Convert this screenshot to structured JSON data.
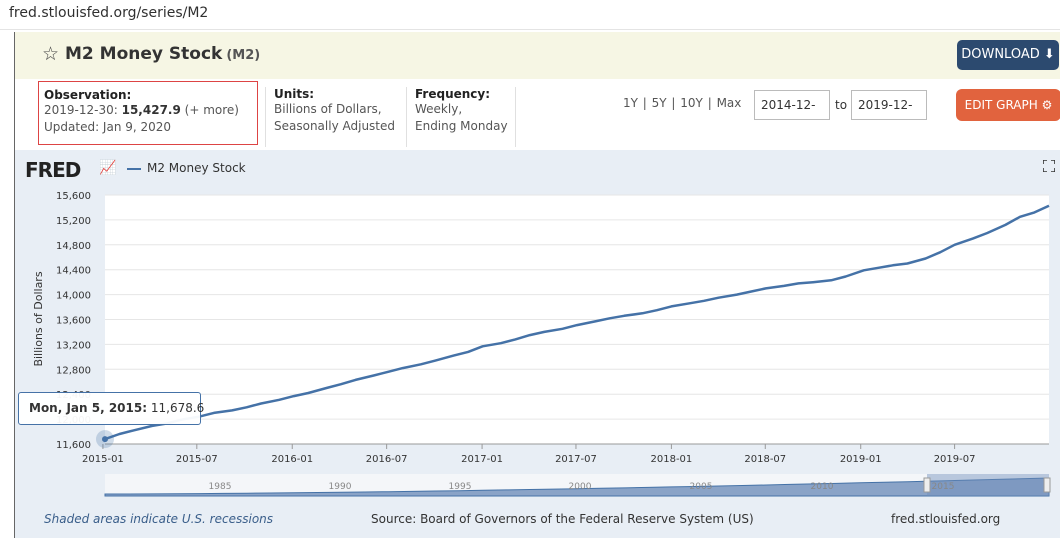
{
  "browser": {
    "url": "fred.stlouisfed.org/series/M2"
  },
  "header": {
    "title": "M2 Money Stock",
    "series_id": "(M2)",
    "download_label": "DOWNLOAD"
  },
  "info": {
    "observation_label": "Observation:",
    "observation_date": "2019-12-30:",
    "observation_value": "15,427.9",
    "observation_more": "(+ more)",
    "updated": "Updated: Jan 9, 2020",
    "units_label": "Units:",
    "units_line1": "Billions of Dollars,",
    "units_line2": "Seasonally Adjusted",
    "frequency_label": "Frequency:",
    "frequency_line1": "Weekly,",
    "frequency_line2": "Ending Monday"
  },
  "controls": {
    "range_links": [
      "1Y",
      "5Y",
      "10Y",
      "Max"
    ],
    "date_from": "2014-12-",
    "date_to": "2019-12-",
    "to_label": "to",
    "edit_label": "EDIT GRAPH"
  },
  "colors": {
    "series": "#4572a7",
    "download_bg": "#2c4a6f",
    "edit_bg": "#e1633e",
    "title_bg": "#f6f6e4"
  },
  "chart_data": {
    "type": "line",
    "legend": "M2 Money Stock",
    "ylabel": "Billions of Dollars",
    "ylim": [
      11600,
      15600
    ],
    "yticks": [
      "15,600",
      "15,200",
      "14,800",
      "14,400",
      "14,000",
      "13,600",
      "13,200",
      "12,800",
      "12,400",
      "12,000",
      "11,600"
    ],
    "xticks": [
      "2015-01",
      "2015-07",
      "2016-01",
      "2016-07",
      "2017-01",
      "2017-07",
      "2018-01",
      "2018-07",
      "2019-01",
      "2019-07"
    ],
    "x_start": "2015-01-05",
    "x_end": "2019-12-30",
    "series": [
      {
        "name": "M2 Money Stock",
        "points": [
          [
            "2015-01-05",
            11678.6
          ],
          [
            "2015-02-02",
            11760
          ],
          [
            "2015-03-02",
            11820
          ],
          [
            "2015-04-06",
            11890
          ],
          [
            "2015-05-04",
            11930
          ],
          [
            "2015-06-01",
            11990
          ],
          [
            "2015-07-06",
            12040
          ],
          [
            "2015-08-03",
            12100
          ],
          [
            "2015-09-07",
            12140
          ],
          [
            "2015-10-05",
            12190
          ],
          [
            "2015-11-02",
            12250
          ],
          [
            "2015-12-07",
            12310
          ],
          [
            "2016-01-04",
            12370
          ],
          [
            "2016-02-01",
            12420
          ],
          [
            "2016-03-07",
            12500
          ],
          [
            "2016-04-04",
            12560
          ],
          [
            "2016-05-02",
            12630
          ],
          [
            "2016-06-06",
            12700
          ],
          [
            "2016-07-04",
            12760
          ],
          [
            "2016-08-01",
            12820
          ],
          [
            "2016-09-05",
            12880
          ],
          [
            "2016-10-03",
            12940
          ],
          [
            "2016-11-07",
            13020
          ],
          [
            "2016-12-05",
            13080
          ],
          [
            "2017-01-02",
            13170
          ],
          [
            "2017-02-06",
            13220
          ],
          [
            "2017-03-06",
            13280
          ],
          [
            "2017-04-03",
            13350
          ],
          [
            "2017-05-01",
            13400
          ],
          [
            "2017-06-05",
            13450
          ],
          [
            "2017-07-03",
            13510
          ],
          [
            "2017-08-07",
            13570
          ],
          [
            "2017-09-04",
            13620
          ],
          [
            "2017-10-02",
            13660
          ],
          [
            "2017-11-06",
            13700
          ],
          [
            "2017-12-04",
            13750
          ],
          [
            "2018-01-01",
            13810
          ],
          [
            "2018-02-05",
            13860
          ],
          [
            "2018-03-05",
            13900
          ],
          [
            "2018-04-02",
            13950
          ],
          [
            "2018-05-07",
            14000
          ],
          [
            "2018-06-04",
            14050
          ],
          [
            "2018-07-02",
            14100
          ],
          [
            "2018-08-06",
            14140
          ],
          [
            "2018-09-03",
            14180
          ],
          [
            "2018-10-01",
            14200
          ],
          [
            "2018-11-05",
            14230
          ],
          [
            "2018-12-03",
            14290
          ],
          [
            "2019-01-07",
            14390
          ],
          [
            "2019-02-04",
            14430
          ],
          [
            "2019-03-04",
            14470
          ],
          [
            "2019-04-01",
            14500
          ],
          [
            "2019-05-06",
            14580
          ],
          [
            "2019-06-03",
            14680
          ],
          [
            "2019-07-01",
            14800
          ],
          [
            "2019-08-05",
            14900
          ],
          [
            "2019-09-02",
            14990
          ],
          [
            "2019-10-07",
            15120
          ],
          [
            "2019-11-04",
            15250
          ],
          [
            "2019-12-02",
            15320
          ],
          [
            "2019-12-30",
            15427.9
          ]
        ]
      }
    ],
    "navigator_ticks": [
      "1985",
      "1990",
      "1995",
      "2000",
      "2005",
      "2010",
      "2015"
    ],
    "tooltip": {
      "date": "Mon, Jan 5, 2015:",
      "value": "11,678.6"
    }
  },
  "footer": {
    "recession_note": "Shaded areas indicate U.S. recessions",
    "source": "Source: Board of Governors of the Federal Reserve System (US)",
    "site": "fred.stlouisfed.org"
  }
}
